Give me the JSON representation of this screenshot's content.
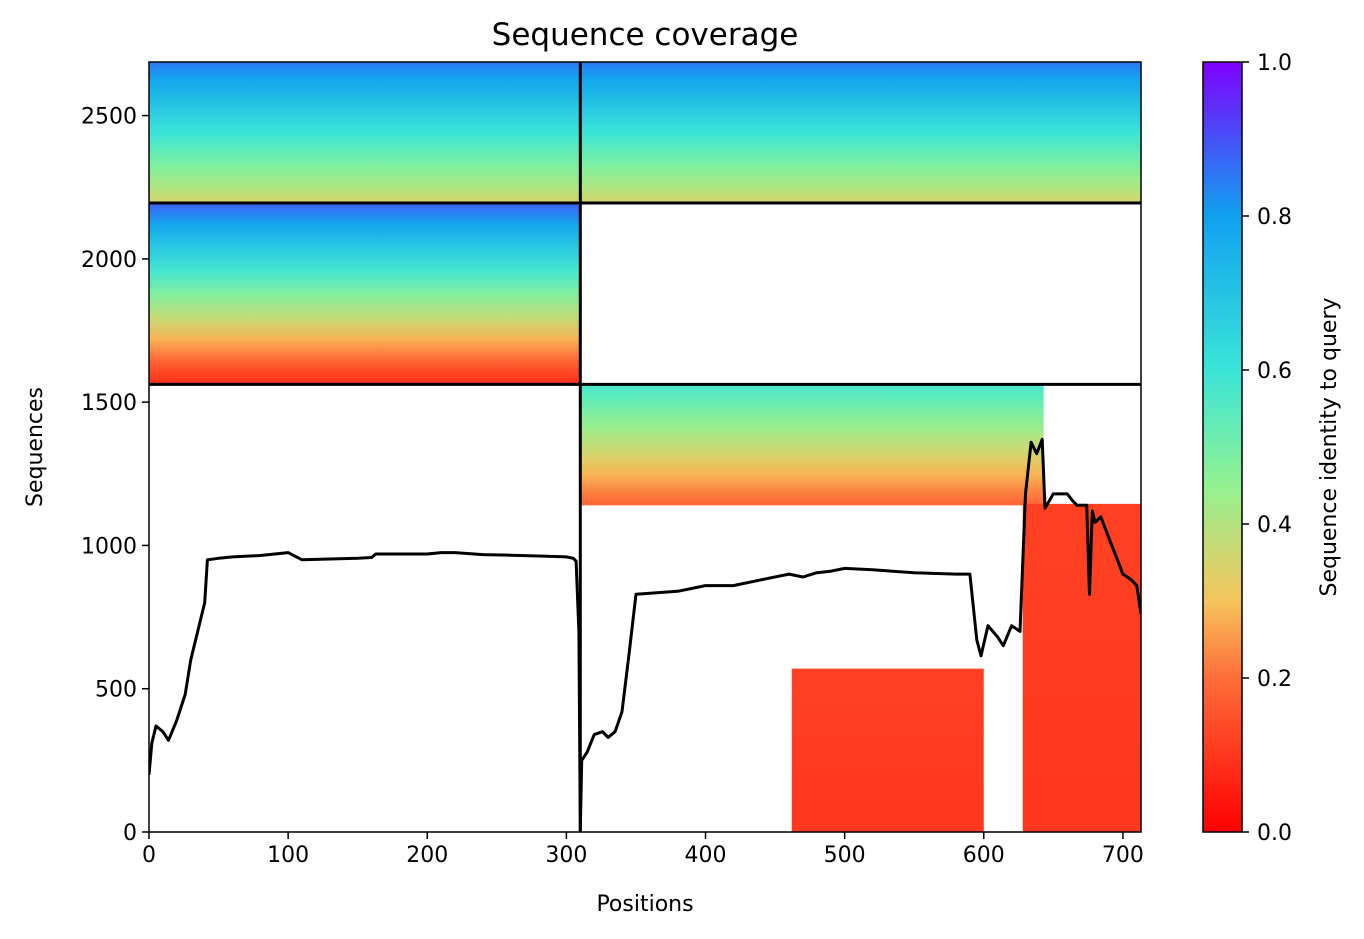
{
  "chart_data": {
    "type": "heatmap",
    "title": "Sequence coverage",
    "xlabel": "Positions",
    "ylabel": "Sequences",
    "xlim": [
      0,
      713
    ],
    "ylim": [
      0,
      2687
    ],
    "xticks": [
      0,
      100,
      200,
      300,
      400,
      500,
      600,
      700
    ],
    "yticks": [
      0,
      500,
      1000,
      1500,
      2000,
      2500
    ],
    "grid": false,
    "colorbar": {
      "label": "Sequence identity to query",
      "colormap": "rainbow_r",
      "range": [
        0.0,
        1.0
      ],
      "ticks": [
        "0.0",
        "0.2",
        "0.4",
        "0.6",
        "0.8",
        "1.0"
      ]
    },
    "chain_boundaries": {
      "x": [
        310
      ],
      "y": [
        1562,
        2195
      ]
    },
    "coverage_blocks": [
      {
        "x": [
          0,
          310
        ],
        "y": [
          2195,
          2687
        ],
        "identity_bottom": 0.35,
        "identity_top": 0.85
      },
      {
        "x": [
          310,
          713
        ],
        "y": [
          2195,
          2687
        ],
        "identity_bottom": 0.35,
        "identity_top": 0.85
      },
      {
        "x": [
          0,
          310
        ],
        "y": [
          1562,
          2195
        ],
        "identity_bottom": 0.08,
        "identity_top": 0.88
      },
      {
        "x": [
          310,
          643
        ],
        "y": [
          1140,
          1562
        ],
        "identity_bottom": 0.18,
        "identity_top": 0.58
      },
      {
        "x": [
          628,
          713
        ],
        "y": [
          0,
          1145
        ],
        "identity_bottom": 0.1,
        "identity_top": 0.12
      },
      {
        "x": [
          462,
          600
        ],
        "y": [
          0,
          570
        ],
        "identity_bottom": 0.1,
        "identity_top": 0.12
      }
    ],
    "series": [
      {
        "x": [
          0,
          2,
          5,
          10,
          14,
          20,
          26,
          30,
          35,
          40,
          42,
          50,
          60,
          80,
          100,
          110,
          150,
          160,
          163,
          200,
          210,
          220,
          240,
          260,
          280,
          300,
          305,
          307,
          309,
          310,
          311,
          315,
          320,
          326,
          330,
          335,
          340,
          345,
          350,
          380,
          400,
          420,
          440,
          460,
          470,
          480,
          490,
          500,
          520,
          550,
          580,
          590,
          595,
          598,
          603,
          610,
          614,
          620,
          626,
          630,
          634,
          638,
          642,
          644,
          650,
          660,
          664,
          667,
          674,
          676,
          678,
          680,
          684,
          700,
          706,
          710,
          713
        ],
        "y": [
          200,
          310,
          370,
          350,
          320,
          390,
          480,
          600,
          700,
          800,
          950,
          955,
          960,
          965,
          975,
          950,
          955,
          958,
          970,
          970,
          975,
          975,
          968,
          966,
          963,
          960,
          955,
          945,
          700,
          5,
          250,
          280,
          340,
          350,
          330,
          350,
          420,
          620,
          830,
          840,
          860,
          860,
          880,
          900,
          890,
          905,
          910,
          920,
          915,
          905,
          900,
          900,
          670,
          615,
          720,
          680,
          650,
          720,
          700,
          1180,
          1360,
          1320,
          1370,
          1130,
          1180,
          1180,
          1155,
          1140,
          1140,
          830,
          1120,
          1080,
          1100,
          900,
          880,
          860,
          760
        ]
      }
    ]
  }
}
